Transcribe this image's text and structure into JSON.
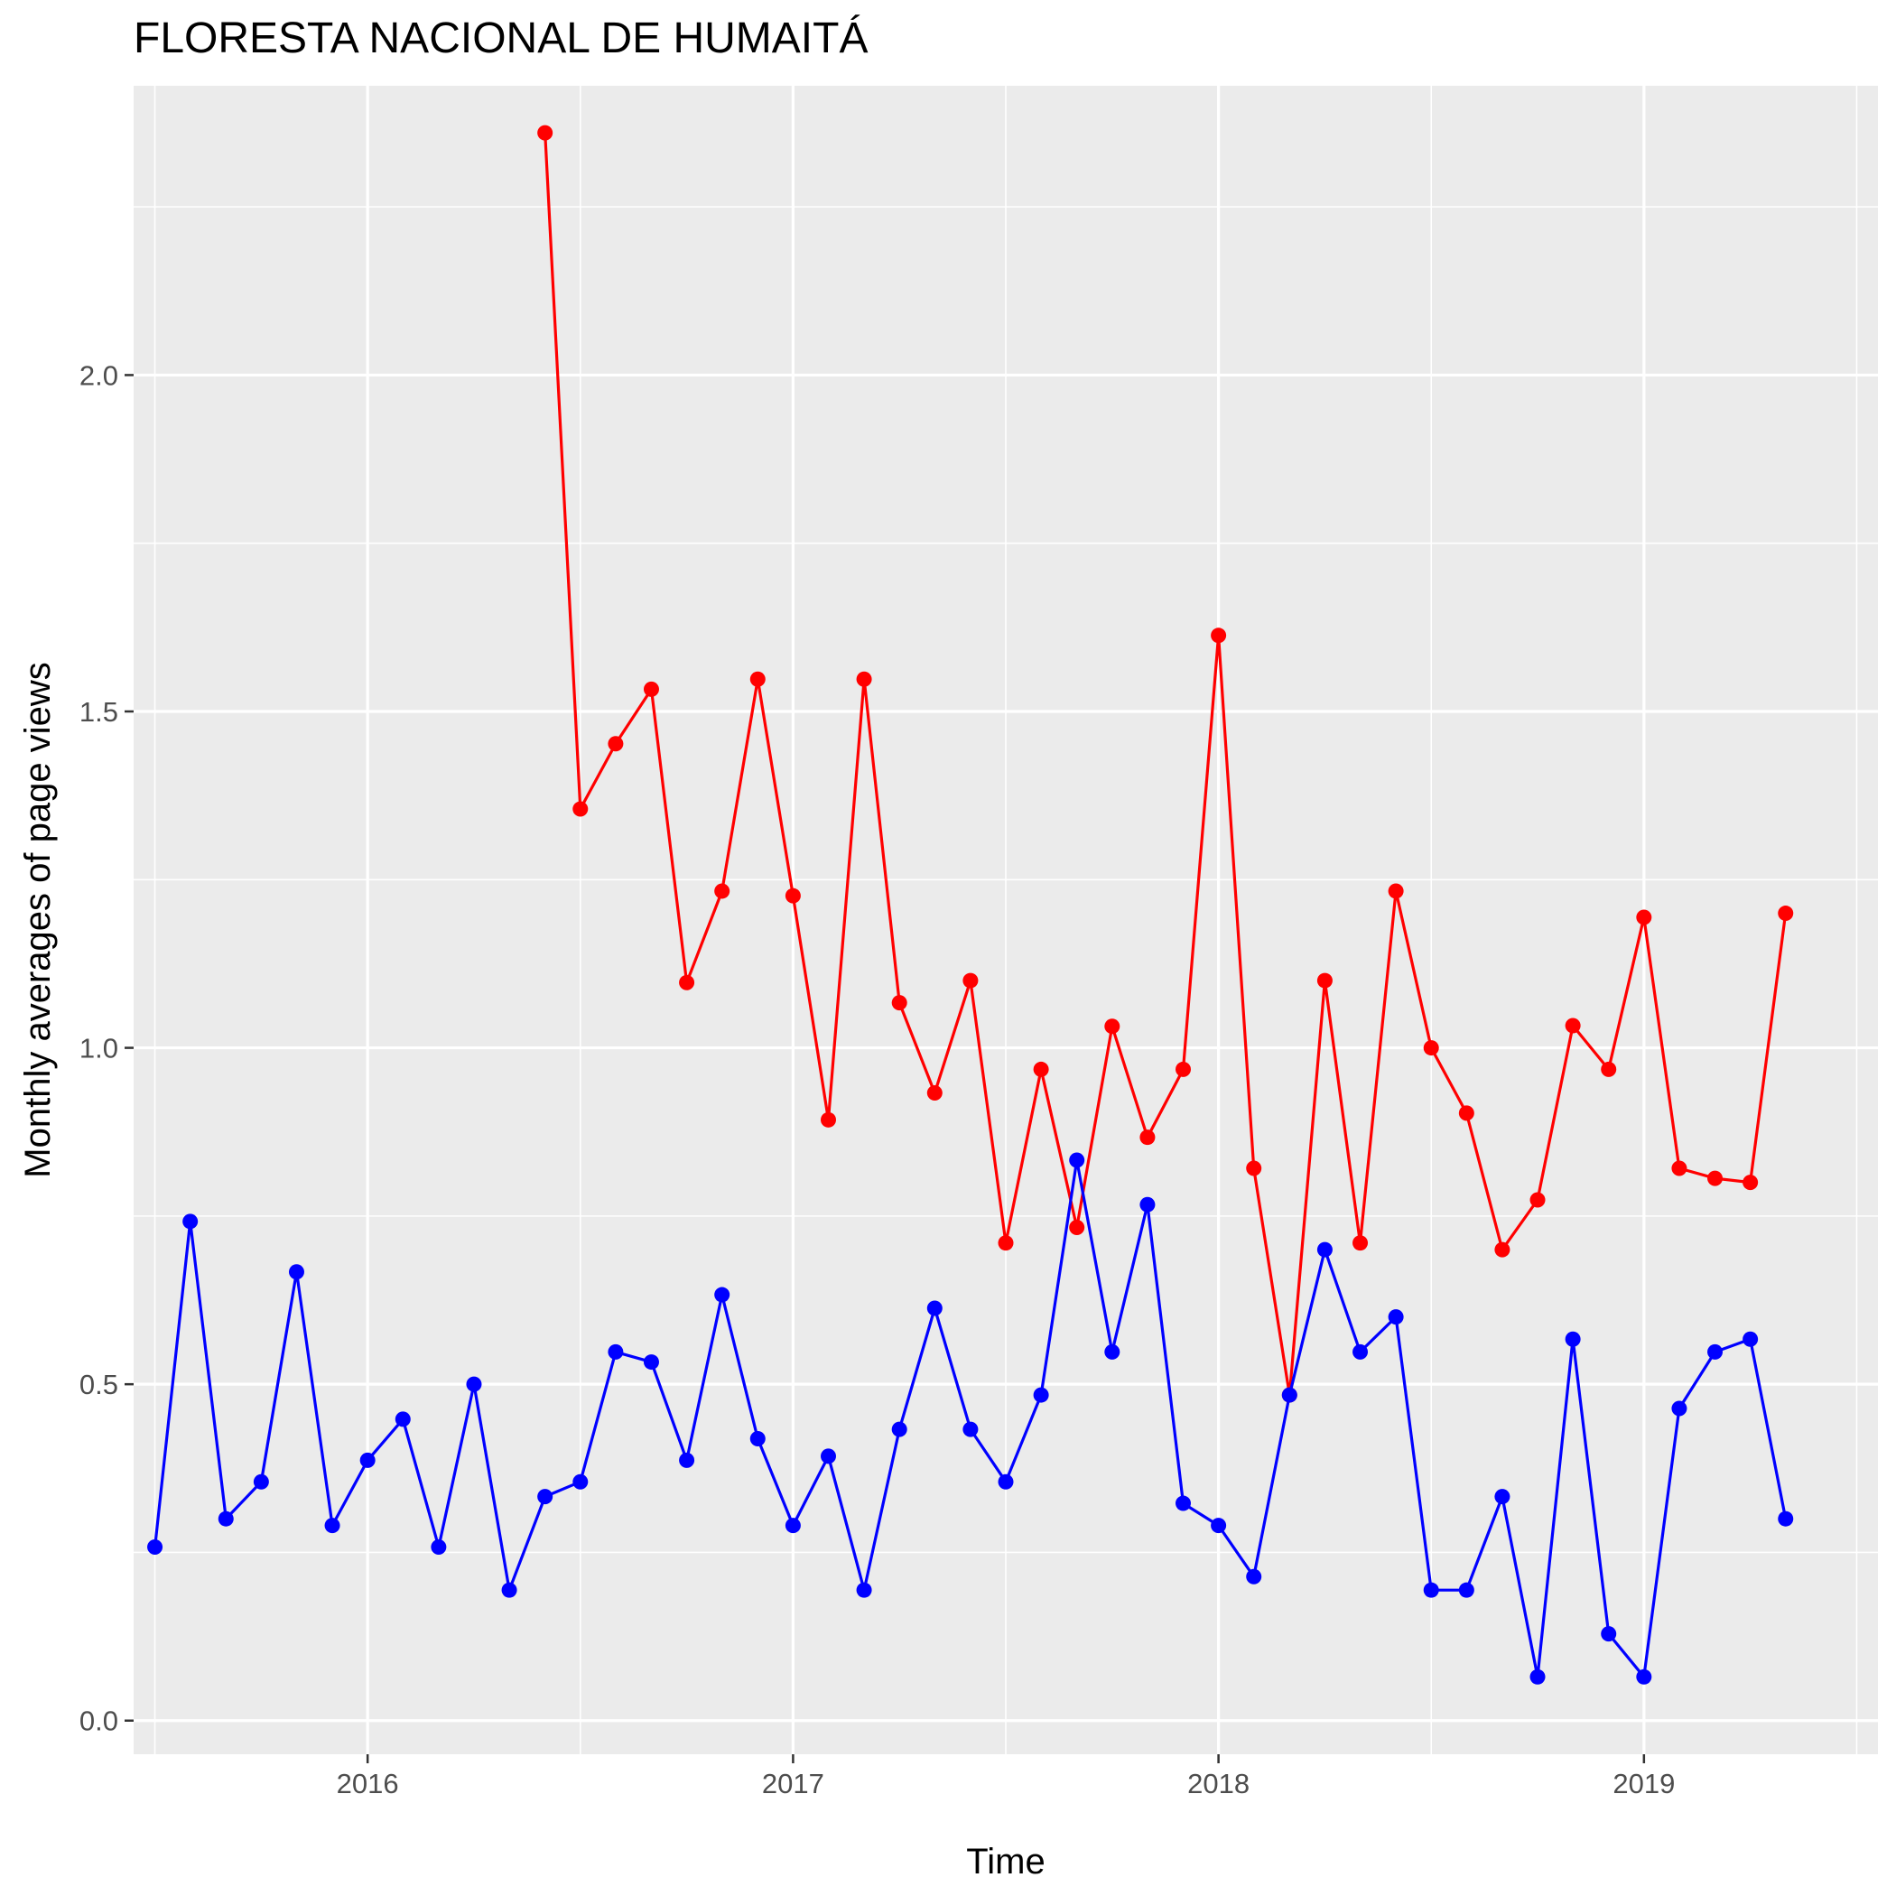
{
  "chart_data": {
    "type": "line",
    "title": "FLORESTA NACIONAL DE HUMAITÁ",
    "xlabel": "Time",
    "ylabel": "Monthly averages of page views",
    "xlim": [
      2015.45,
      2019.55
    ],
    "ylim": [
      -0.05,
      2.43
    ],
    "x_ticks": [
      2016,
      2017,
      2018,
      2019
    ],
    "x_tick_labels": [
      "2016",
      "2017",
      "2018",
      "2019"
    ],
    "y_ticks": [
      0.0,
      0.5,
      1.0,
      1.5,
      2.0
    ],
    "y_tick_labels": [
      "0.0",
      "0.5",
      "1.0",
      "1.5",
      "2.0"
    ],
    "grid": true,
    "legend": "none",
    "series": [
      {
        "color": "#ff0000",
        "x": [
          2016.417,
          2016.5,
          2016.583,
          2016.667,
          2016.75,
          2016.833,
          2016.917,
          2017.0,
          2017.083,
          2017.167,
          2017.25,
          2017.333,
          2017.417,
          2017.5,
          2017.583,
          2017.667,
          2017.75,
          2017.833,
          2017.917,
          2018.0,
          2018.083,
          2018.167,
          2018.25,
          2018.333,
          2018.417,
          2018.5,
          2018.583,
          2018.667,
          2018.75,
          2018.833,
          2018.917,
          2019.0,
          2019.083,
          2019.167,
          2019.25,
          2019.333
        ],
        "values": [
          2.36,
          1.355,
          1.452,
          1.533,
          1.097,
          1.233,
          1.548,
          1.226,
          0.893,
          1.548,
          1.067,
          0.933,
          1.1,
          0.71,
          0.968,
          0.733,
          1.032,
          0.867,
          0.968,
          1.613,
          0.821,
          0.484,
          1.1,
          0.71,
          1.233,
          1.0,
          0.903,
          0.7,
          0.774,
          1.033,
          0.968,
          1.194,
          0.821,
          0.806,
          0.8,
          1.2
        ]
      },
      {
        "color": "#0000ff",
        "x": [
          2015.5,
          2015.583,
          2015.667,
          2015.75,
          2015.833,
          2015.917,
          2016.0,
          2016.083,
          2016.167,
          2016.25,
          2016.333,
          2016.417,
          2016.5,
          2016.583,
          2016.667,
          2016.75,
          2016.833,
          2016.917,
          2017.0,
          2017.083,
          2017.167,
          2017.25,
          2017.333,
          2017.417,
          2017.5,
          2017.583,
          2017.667,
          2017.75,
          2017.833,
          2017.917,
          2018.0,
          2018.083,
          2018.167,
          2018.25,
          2018.333,
          2018.417,
          2018.5,
          2018.583,
          2018.667,
          2018.75,
          2018.833,
          2018.917,
          2019.0,
          2019.083,
          2019.167,
          2019.25,
          2019.333
        ],
        "values": [
          0.258,
          0.742,
          0.3,
          0.355,
          0.667,
          0.29,
          0.387,
          0.448,
          0.258,
          0.5,
          0.194,
          0.333,
          0.355,
          0.548,
          0.533,
          0.387,
          0.633,
          0.419,
          0.29,
          0.393,
          0.194,
          0.433,
          0.613,
          0.433,
          0.355,
          0.484,
          0.833,
          0.548,
          0.767,
          0.323,
          0.29,
          0.214,
          0.484,
          0.7,
          0.548,
          0.6,
          0.194,
          0.194,
          0.333,
          0.065,
          0.567,
          0.129,
          0.065,
          0.464,
          0.548,
          0.567,
          0.3
        ]
      }
    ]
  }
}
